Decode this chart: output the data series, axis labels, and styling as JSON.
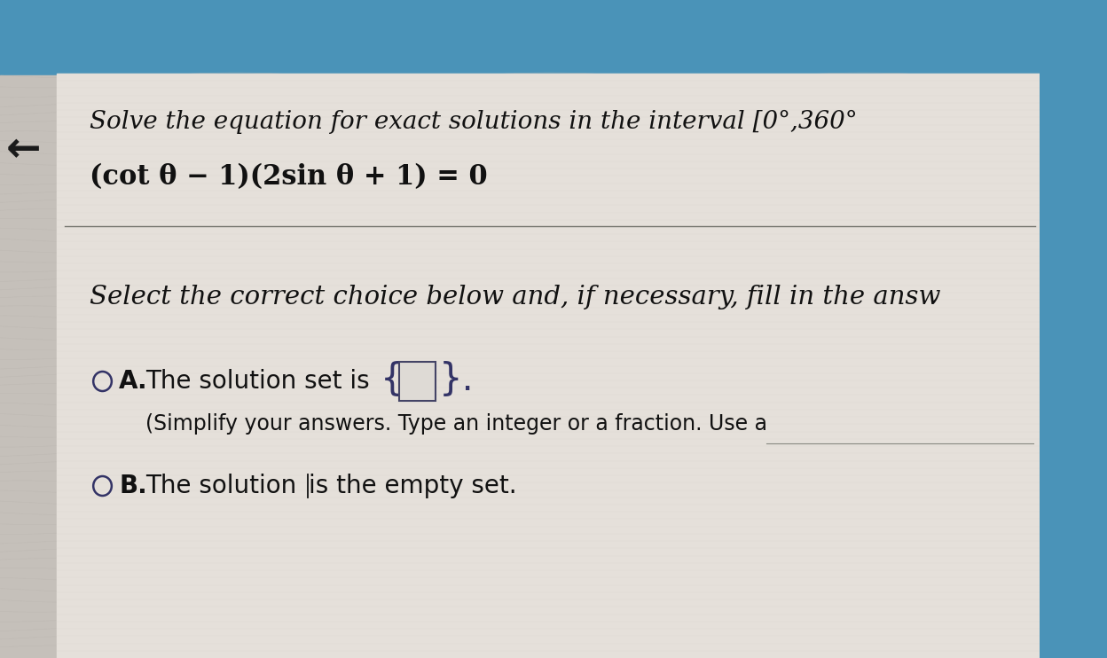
{
  "bg_top_color": "#4a93b8",
  "bg_bottom_color": "#c8c4be",
  "panel_color": "#dedad5",
  "title_text": "Solve the equation for exact solutions in the interval [0°,360°",
  "equation_text": "(cot θ − 1)(2sin θ + 1) = 0",
  "select_text": "Select the correct choice below and, if necessary, fill in the answ",
  "option_a_label": "A.",
  "option_a_text": "The solution set is  {",
  "option_a_text2": "}.",
  "option_a_sub": "(Simplify your answers. Type an integer or a fraction. Use a",
  "option_b_label": "B.",
  "option_b_text1": "The solution",
  "option_b_text2": "is the empty set.",
  "arrow_text": "←",
  "top_bar_height": 85,
  "fig_w": 12.48,
  "fig_h": 7.42,
  "dpi": 100
}
